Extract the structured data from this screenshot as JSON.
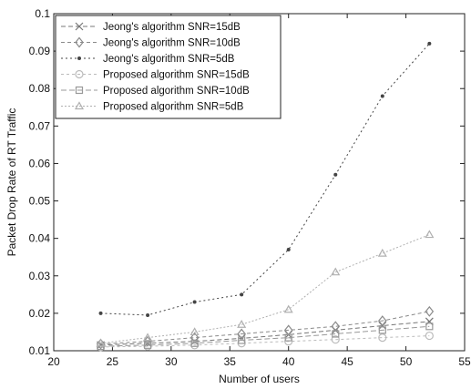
{
  "chart_data": {
    "type": "line",
    "xlabel": "Number of users",
    "ylabel": "Packet Drop Rate of RT Traffic",
    "xlim": [
      20,
      55
    ],
    "ylim": [
      0.01,
      0.1
    ],
    "x_ticks": [
      20,
      25,
      30,
      35,
      40,
      45,
      50,
      55
    ],
    "y_ticks": [
      0.01,
      0.02,
      0.03,
      0.04,
      0.05,
      0.06,
      0.07,
      0.08,
      0.09,
      0.1
    ],
    "x_tick_labels": [
      "20",
      "25",
      "30",
      "35",
      "40",
      "45",
      "50",
      "55"
    ],
    "y_tick_labels": [
      "0.01",
      "0.02",
      "0.03",
      "0.04",
      "0.05",
      "0.06",
      "0.07",
      "0.08",
      "0.09",
      "0.1"
    ],
    "grid": false,
    "legend_position": "top-left",
    "x": [
      24,
      28,
      32,
      36,
      40,
      44,
      48,
      52
    ],
    "series": [
      {
        "name": "Jeong's algorithm SNR=15dB",
        "marker": "x",
        "color": "#777777",
        "dash": "5,3",
        "values": [
          0.0115,
          0.012,
          0.0125,
          0.0133,
          0.0143,
          0.0155,
          0.0167,
          0.0178
        ]
      },
      {
        "name": "Jeong's algorithm SNR=10dB",
        "marker": "diamond",
        "color": "#8a8a8a",
        "dash": "4,3",
        "values": [
          0.0118,
          0.0125,
          0.0135,
          0.0145,
          0.0155,
          0.0165,
          0.018,
          0.0205
        ]
      },
      {
        "name": "Jeong's algorithm SNR=5dB",
        "marker": "dot",
        "color": "#444444",
        "dash": "2,3",
        "values": [
          0.02,
          0.0195,
          0.023,
          0.025,
          0.037,
          0.057,
          0.078,
          0.092
        ]
      },
      {
        "name": "Proposed algorithm SNR=15dB",
        "marker": "circle",
        "color": "#bbbbbb",
        "dash": "3,3",
        "values": [
          0.011,
          0.0112,
          0.0115,
          0.012,
          0.0125,
          0.013,
          0.0135,
          0.014
        ]
      },
      {
        "name": "Proposed algorithm SNR=10dB",
        "marker": "square",
        "color": "#999999",
        "dash": "6,3",
        "values": [
          0.0112,
          0.0115,
          0.012,
          0.0128,
          0.0135,
          0.0145,
          0.0155,
          0.0165
        ]
      },
      {
        "name": "Proposed algorithm SNR=5dB",
        "marker": "triangle",
        "color": "#b0b0b0",
        "dash": "2,2",
        "values": [
          0.012,
          0.0135,
          0.015,
          0.017,
          0.021,
          0.031,
          0.036,
          0.041
        ]
      }
    ]
  }
}
